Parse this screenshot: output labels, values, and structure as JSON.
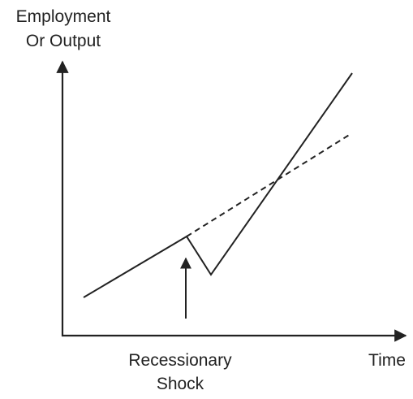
{
  "axes": {
    "y_label": [
      "Employment",
      "Or Output"
    ],
    "x_label": "Time"
  },
  "annotations": {
    "shock": [
      "Recessionary",
      "Shock"
    ]
  }
}
